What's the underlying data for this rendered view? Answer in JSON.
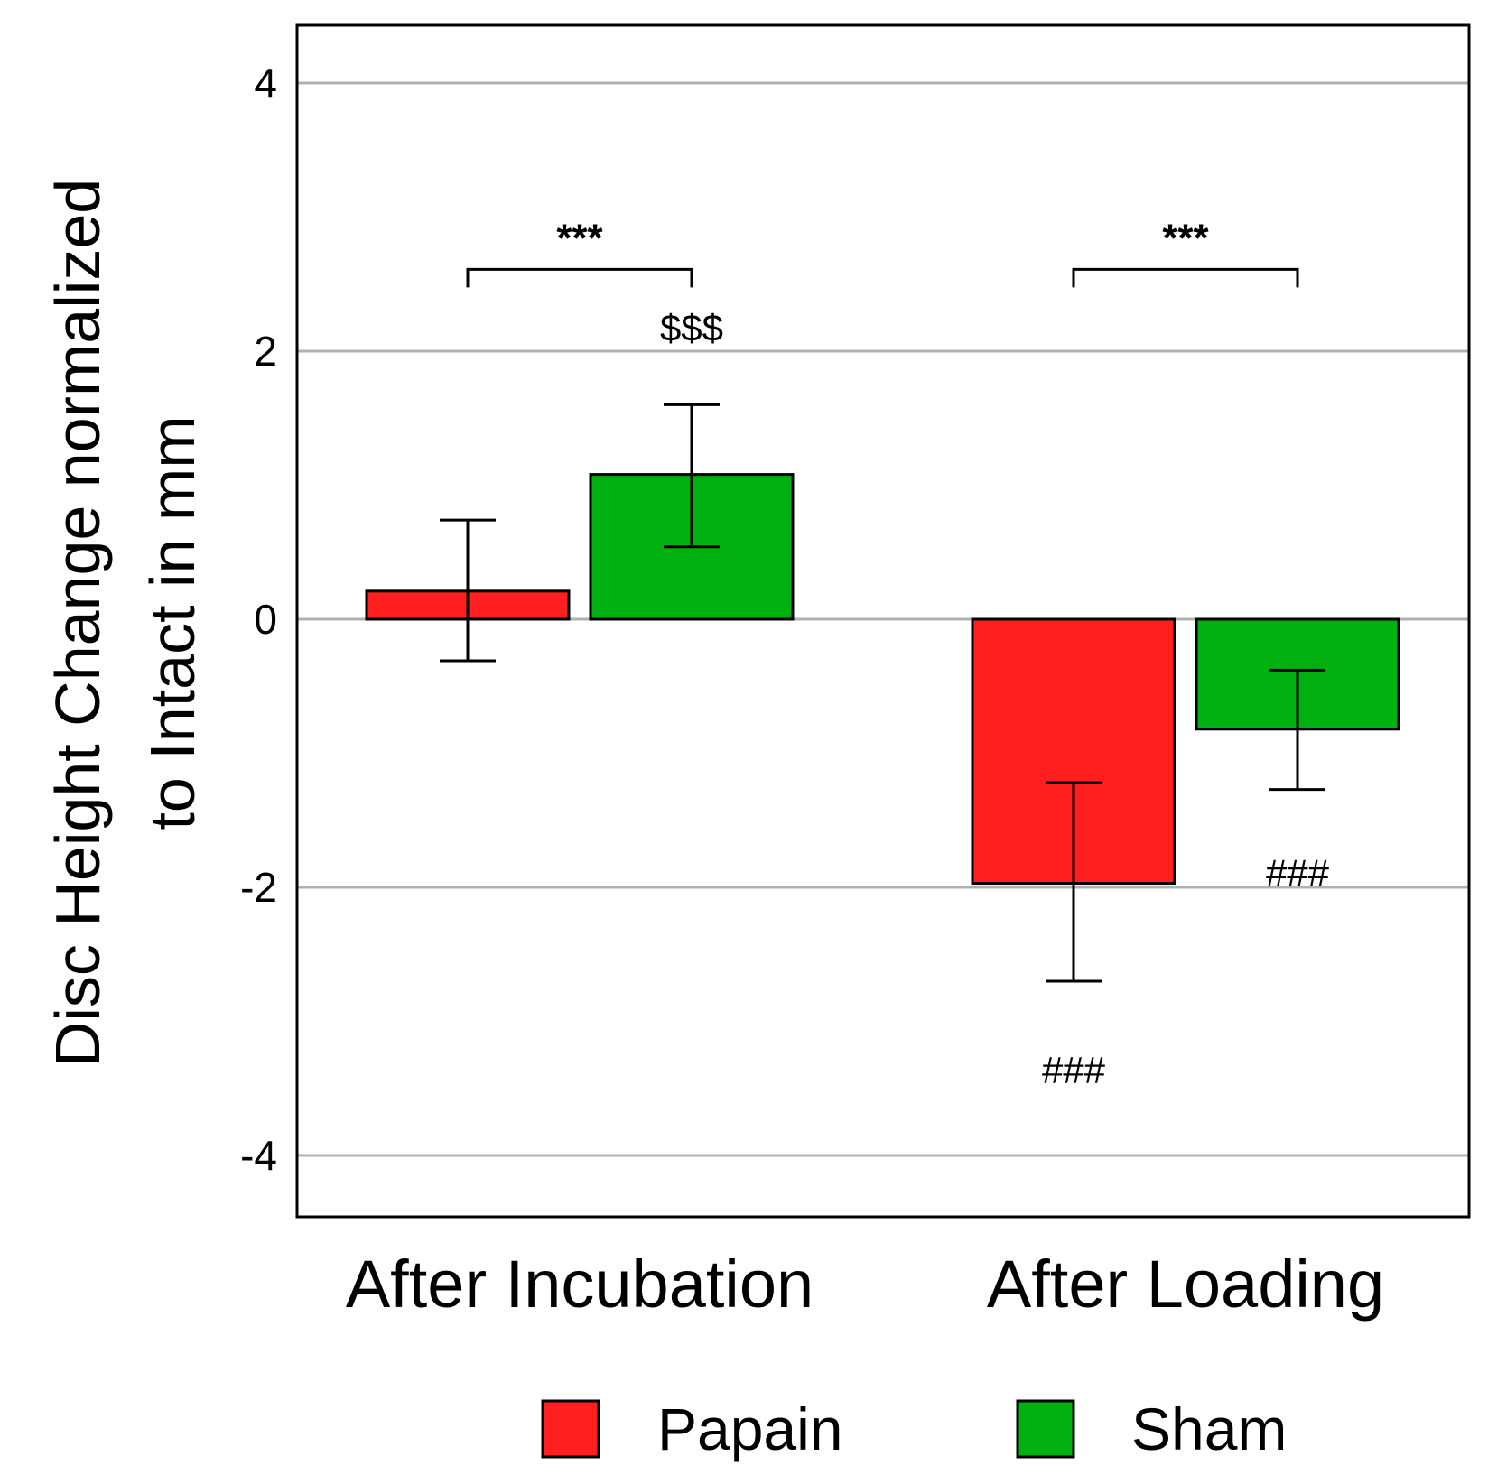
{
  "chart_data": {
    "type": "bar",
    "title": "",
    "xlabel": "",
    "ylabel_lines": [
      "Disc Height Change normalized",
      "to Intact in mm"
    ],
    "categories": [
      "After Incubation",
      "After Loading"
    ],
    "ylim": [
      -4.45,
      4.45
    ],
    "yticks": [
      4,
      2,
      0,
      -2,
      -4
    ],
    "ytick_labels": [
      "4",
      "2",
      "0",
      "-2",
      "-4"
    ],
    "grid": true,
    "series": [
      {
        "name": "Papain",
        "color": "#ff1f1f",
        "values": [
          0.21,
          -1.97
        ],
        "err_low": [
          -0.31,
          -2.7
        ],
        "err_high": [
          0.74,
          -1.22
        ]
      },
      {
        "name": "Sham",
        "color": "#00b011",
        "values": [
          1.08,
          -0.82
        ],
        "err_low": [
          0.54,
          -1.27
        ],
        "err_high": [
          1.6,
          -0.38
        ]
      }
    ],
    "significance_brackets": [
      {
        "category": 0,
        "label": "***",
        "y": 2.61
      },
      {
        "category": 1,
        "label": "***",
        "y": 2.61
      }
    ],
    "annotations": [
      {
        "category": 0,
        "series": 1,
        "label": "$$$",
        "y": 2.18
      },
      {
        "category": 1,
        "series": 0,
        "label": "###",
        "y": -3.36
      },
      {
        "category": 1,
        "series": 1,
        "label": "###",
        "y": -1.89
      }
    ],
    "legend": {
      "position": "bottom",
      "entries": [
        "Papain",
        "Sham"
      ]
    }
  }
}
